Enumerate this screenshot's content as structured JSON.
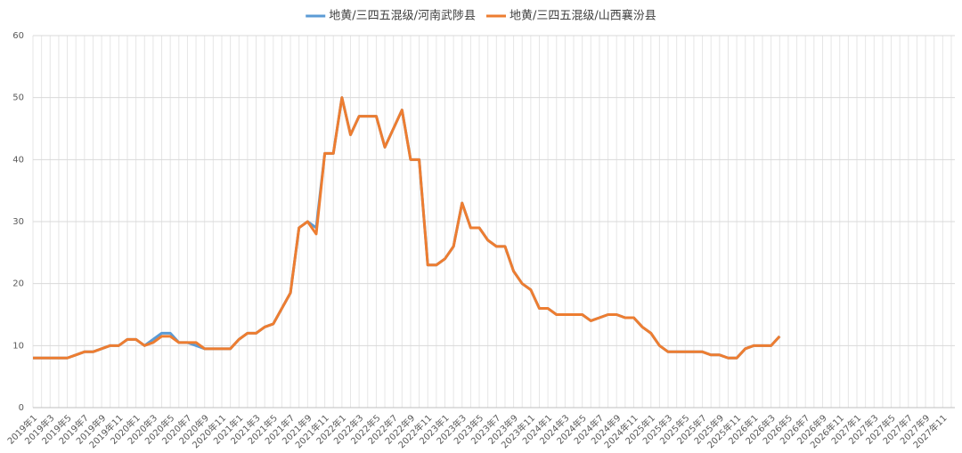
{
  "chart_data": {
    "type": "line",
    "categories": [
      "2019年1",
      null,
      "2019年3",
      null,
      "2019年5",
      null,
      "2019年7",
      null,
      "2019年9",
      null,
      "2019年11",
      null,
      "2020年1",
      null,
      "2020年3",
      null,
      "2020年5",
      null,
      "2020年7",
      null,
      "2020年9",
      null,
      "2020年11",
      null,
      "2021年1",
      null,
      "2021年3",
      null,
      "2021年5",
      null,
      "2021年7",
      null,
      "2021年9",
      null,
      "2021年11",
      null,
      "2022年1",
      null,
      "2022年3",
      null,
      "2022年5",
      null,
      "2022年7",
      null,
      "2022年9",
      null,
      "2022年11",
      null,
      "2023年1",
      null,
      "2023年3",
      null,
      "2023年5",
      null,
      "2023年7",
      null,
      "2023年9",
      null,
      "2023年11",
      null,
      "2024年1",
      null,
      "2024年3",
      null,
      "2024年5",
      null,
      "2024年7",
      null,
      "2024年9",
      null,
      "2024年11",
      null,
      "2025年1",
      null,
      "2025年3",
      null,
      "2025年5",
      null,
      "2025年7",
      null,
      "2025年9",
      null,
      "2025年11",
      null,
      "2026年1",
      null,
      "2026年3",
      null,
      "2026年5",
      null,
      "2026年7",
      null,
      "2026年9",
      null,
      "2026年11",
      null,
      "2027年1",
      null,
      "2027年3",
      null,
      "2027年5",
      null,
      "2027年7",
      null,
      "2027年9",
      null,
      "2027年11",
      null
    ],
    "series": [
      {
        "name": "地黄/三四五混级/河南武陟县",
        "color": "#5b9bd5",
        "values": [
          8,
          8,
          8,
          8,
          8,
          8.5,
          9,
          9,
          9.5,
          10,
          10,
          11,
          11,
          10,
          11,
          12,
          12,
          10.5,
          10.5,
          10,
          9.5,
          9.5,
          9.5,
          9.5,
          11,
          12,
          12,
          13,
          13.5,
          16,
          18.5,
          29,
          30,
          29,
          41,
          41,
          50,
          44,
          47,
          47,
          47,
          42,
          45,
          48,
          40,
          40,
          23,
          23,
          24,
          26,
          33,
          29,
          29,
          27,
          26,
          26,
          22,
          20,
          19,
          16,
          16,
          15,
          15,
          15,
          15,
          14,
          14.5,
          15,
          15,
          14.5,
          14.5,
          13,
          12,
          10,
          9,
          9,
          9,
          9,
          9,
          8.5,
          8.5,
          8,
          8,
          9.5,
          10,
          10,
          10,
          11.5,
          null,
          null,
          null,
          null,
          null,
          null,
          null,
          null,
          null,
          null,
          null,
          null,
          null,
          null,
          null,
          null,
          null,
          null,
          null,
          null
        ]
      },
      {
        "name": "地黄/三四五混级/山西襄汾县",
        "color": "#ed7d31",
        "values": [
          8,
          8,
          8,
          8,
          8,
          8.5,
          9,
          9,
          9.5,
          10,
          10,
          11,
          11,
          10,
          10.5,
          11.5,
          11.5,
          10.5,
          10.5,
          10.5,
          9.5,
          9.5,
          9.5,
          9.5,
          11,
          12,
          12,
          13,
          13.5,
          16,
          18.5,
          29,
          30,
          28,
          41,
          41,
          50,
          44,
          47,
          47,
          47,
          42,
          45,
          48,
          40,
          40,
          23,
          23,
          24,
          26,
          33,
          29,
          29,
          27,
          26,
          26,
          22,
          20,
          19,
          16,
          16,
          15,
          15,
          15,
          15,
          14,
          14.5,
          15,
          15,
          14.5,
          14.5,
          13,
          12,
          10,
          9,
          9,
          9,
          9,
          9,
          8.5,
          8.5,
          8,
          8,
          9.5,
          10,
          10,
          10,
          11.5,
          null,
          null,
          null,
          null,
          null,
          null,
          null,
          null,
          null,
          null,
          null,
          null,
          null,
          null,
          null,
          null,
          null,
          null,
          null,
          null
        ]
      }
    ],
    "ylim": [
      0,
      60
    ],
    "yticks": [
      0,
      10,
      20,
      30,
      40,
      50,
      60
    ],
    "grid": true,
    "legend": "top"
  }
}
